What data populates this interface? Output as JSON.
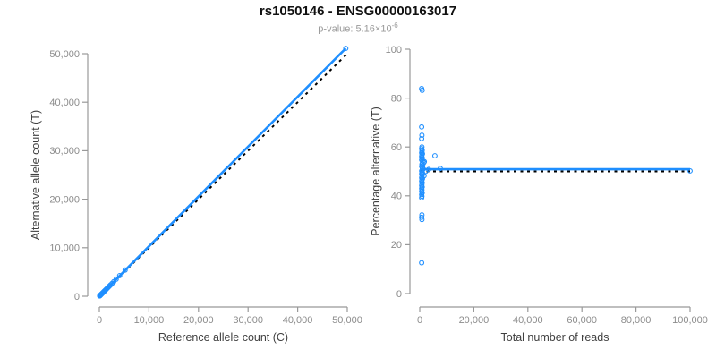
{
  "header": {
    "title": "rs1050146 - ENSG00000163017",
    "subtitle_prefix": "p-value: 5.16×10",
    "subtitle_exponent": "-6"
  },
  "colors": {
    "accent": "#1f8fff",
    "dashed": "#000000",
    "axis": "#999999",
    "tick_label": "#8c8c8c",
    "axis_title": "#404040"
  },
  "chart_data": [
    {
      "id": "left",
      "type": "scatter",
      "xlabel": "Reference allele count (C)",
      "ylabel": "Alternative allele count (T)",
      "xlim": [
        0,
        50000
      ],
      "ylim": [
        0,
        50000
      ],
      "grid": false,
      "xticks": [
        {
          "v": 0,
          "label": "0"
        },
        {
          "v": 10000,
          "label": "10,000"
        },
        {
          "v": 20000,
          "label": "20,000"
        },
        {
          "v": 30000,
          "label": "30,000"
        },
        {
          "v": 40000,
          "label": "40,000"
        },
        {
          "v": 50000,
          "label": "50,000"
        }
      ],
      "yticks": [
        {
          "v": 0,
          "label": "0"
        },
        {
          "v": 10000,
          "label": "10,000"
        },
        {
          "v": 20000,
          "label": "20,000"
        },
        {
          "v": 30000,
          "label": "30,000"
        },
        {
          "v": 40000,
          "label": "40,000"
        },
        {
          "v": 50000,
          "label": "50,000"
        }
      ],
      "lines": [
        {
          "name": "identity-line",
          "style": "dashed",
          "color_key": "dashed",
          "points": [
            [
              0,
              0
            ],
            [
              50000,
              50000
            ]
          ]
        },
        {
          "name": "fit-line",
          "style": "solid",
          "color_key": "accent",
          "points": [
            [
              0,
              0
            ],
            [
              49700,
              51100
            ]
          ]
        }
      ],
      "points": [
        [
          60,
          62
        ],
        [
          90,
          95
        ],
        [
          120,
          125
        ],
        [
          150,
          158
        ],
        [
          180,
          188
        ],
        [
          210,
          220
        ],
        [
          250,
          262
        ],
        [
          290,
          300
        ],
        [
          330,
          345
        ],
        [
          370,
          385
        ],
        [
          420,
          435
        ],
        [
          470,
          490
        ],
        [
          520,
          540
        ],
        [
          580,
          600
        ],
        [
          640,
          665
        ],
        [
          700,
          730
        ],
        [
          770,
          800
        ],
        [
          850,
          880
        ],
        [
          930,
          965
        ],
        [
          1020,
          1060
        ],
        [
          1120,
          1160
        ],
        [
          1230,
          1275
        ],
        [
          1350,
          1400
        ],
        [
          1480,
          1540
        ],
        [
          1630,
          1690
        ],
        [
          1800,
          1870
        ],
        [
          2000,
          2075
        ],
        [
          2250,
          2330
        ],
        [
          2550,
          2640
        ],
        [
          2900,
          3010
        ],
        [
          3400,
          3530
        ],
        [
          4100,
          4260
        ],
        [
          5200,
          5400
        ],
        [
          49700,
          51100
        ]
      ]
    },
    {
      "id": "right",
      "type": "scatter",
      "xlabel": "Total number of reads",
      "ylabel": "Percentage alternative (T)",
      "xlim": [
        0,
        100000
      ],
      "ylim": [
        0,
        100
      ],
      "grid": false,
      "xticks": [
        {
          "v": 0,
          "label": "0"
        },
        {
          "v": 20000,
          "label": "20,000"
        },
        {
          "v": 40000,
          "label": "40,000"
        },
        {
          "v": 60000,
          "label": "60,000"
        },
        {
          "v": 80000,
          "label": "80,000"
        },
        {
          "v": 100000,
          "label": "100,000"
        }
      ],
      "yticks": [
        {
          "v": 0,
          "label": "0"
        },
        {
          "v": 20,
          "label": "20"
        },
        {
          "v": 40,
          "label": "40"
        },
        {
          "v": 60,
          "label": "60"
        },
        {
          "v": 80,
          "label": "80"
        },
        {
          "v": 100,
          "label": "100"
        }
      ],
      "lines": [
        {
          "name": "reference-line",
          "style": "dashed",
          "color_key": "dashed",
          "points": [
            [
              0,
              50
            ],
            [
              100000,
              50
            ]
          ]
        },
        {
          "name": "fit-line",
          "style": "solid",
          "color_key": "accent",
          "points": [
            [
              0,
              50.9
            ],
            [
              100000,
              50.9
            ]
          ]
        }
      ],
      "points": [
        [
          700,
          83.9
        ],
        [
          900,
          83.2
        ],
        [
          700,
          68.2
        ],
        [
          800,
          64.8
        ],
        [
          700,
          63.4
        ],
        [
          800,
          60.0
        ],
        [
          700,
          59.3
        ],
        [
          900,
          58.7
        ],
        [
          800,
          58.2
        ],
        [
          700,
          57.6
        ],
        [
          1000,
          57.2
        ],
        [
          800,
          56.7
        ],
        [
          5600,
          56.4
        ],
        [
          700,
          56.1
        ],
        [
          900,
          55.6
        ],
        [
          800,
          55.1
        ],
        [
          700,
          54.7
        ],
        [
          1200,
          54.3
        ],
        [
          1700,
          54.0
        ],
        [
          1500,
          53.6
        ],
        [
          900,
          53.2
        ],
        [
          800,
          52.8
        ],
        [
          1100,
          52.4
        ],
        [
          700,
          52.0
        ],
        [
          1000,
          51.6
        ],
        [
          7600,
          51.2
        ],
        [
          1300,
          51.0
        ],
        [
          3300,
          50.8
        ],
        [
          900,
          50.5
        ],
        [
          700,
          50.2
        ],
        [
          2200,
          50.0
        ],
        [
          800,
          49.7
        ],
        [
          1000,
          49.4
        ],
        [
          700,
          49.0
        ],
        [
          900,
          48.6
        ],
        [
          1600,
          48.2
        ],
        [
          800,
          47.8
        ],
        [
          700,
          47.4
        ],
        [
          1000,
          47.0
        ],
        [
          800,
          46.5
        ],
        [
          700,
          46.0
        ],
        [
          900,
          45.4
        ],
        [
          800,
          44.8
        ],
        [
          700,
          44.2
        ],
        [
          900,
          43.6
        ],
        [
          700,
          43.0
        ],
        [
          800,
          42.4
        ],
        [
          700,
          41.8
        ],
        [
          900,
          41.2
        ],
        [
          700,
          40.5
        ],
        [
          800,
          39.8
        ],
        [
          700,
          39.2
        ],
        [
          800,
          32.2
        ],
        [
          700,
          31.2
        ],
        [
          800,
          30.3
        ],
        [
          700,
          12.6
        ],
        [
          100000,
          50.2
        ]
      ]
    }
  ]
}
